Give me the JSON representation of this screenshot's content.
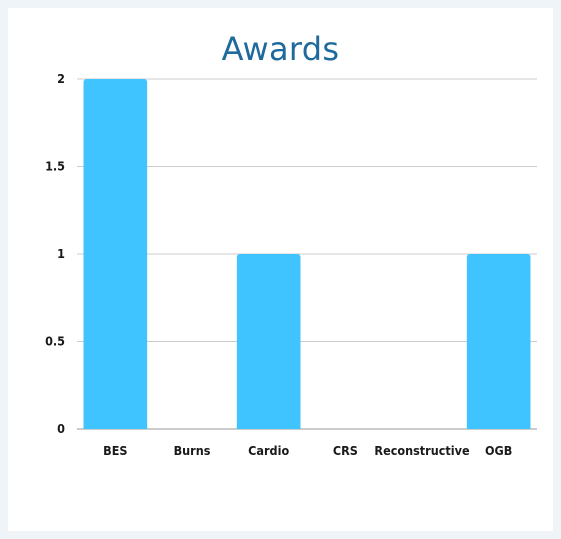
{
  "chart_data": {
    "type": "bar",
    "title": "Awards",
    "categories": [
      "BES",
      "Burns",
      "Cardio",
      "CRS",
      "Reconstructive",
      "OGB"
    ],
    "values": [
      2,
      0,
      1,
      0,
      0,
      1
    ],
    "ylim": [
      0,
      2
    ],
    "yticks": [
      0,
      0.5,
      1,
      1.5,
      2
    ],
    "ytick_labels": [
      "0",
      "0.5",
      "1",
      "1.5",
      "2"
    ],
    "xlabel": "",
    "ylabel": "",
    "grid": true,
    "legend": "none",
    "colors": {
      "bar": "#40c4ff",
      "grid": "#cccccc",
      "title": "#1e6a9c",
      "background": "#eef4f7",
      "card": "#ffffff"
    }
  }
}
